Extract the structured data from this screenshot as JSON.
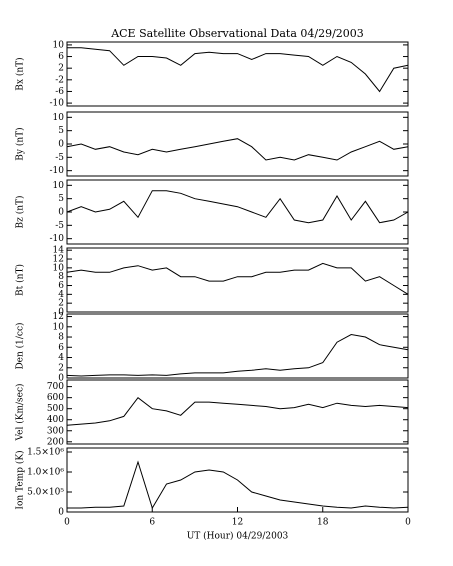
{
  "chart_data": [
    {
      "type": "line",
      "title": "ACE Satellite Observational Data  04/29/2003",
      "ylabel": "Bx (nT)",
      "x": [
        0,
        1,
        2,
        3,
        4,
        5,
        6,
        7,
        8,
        9,
        10,
        11,
        12,
        13,
        14,
        15,
        16,
        17,
        18,
        19,
        20,
        21,
        22,
        23,
        24
      ],
      "values": [
        9,
        9,
        8.5,
        8,
        3,
        6,
        6,
        5.5,
        3,
        7,
        7.5,
        7,
        7,
        5,
        7,
        7,
        6.5,
        6,
        3,
        6,
        4,
        0,
        -6,
        2,
        3
      ],
      "xlim": [
        0,
        24
      ],
      "ylim": [
        -11,
        11
      ],
      "yticks": [
        -10,
        -6,
        -2,
        2,
        6,
        10
      ],
      "color": "#000000"
    },
    {
      "type": "line",
      "ylabel": "By (nT)",
      "x": [
        0,
        1,
        2,
        3,
        4,
        5,
        6,
        7,
        8,
        9,
        10,
        11,
        12,
        13,
        14,
        15,
        16,
        17,
        18,
        19,
        20,
        21,
        22,
        23,
        24
      ],
      "values": [
        -1,
        0,
        -2,
        -1,
        -3,
        -4,
        -2,
        -3,
        -2,
        -1,
        0,
        1,
        2,
        -1,
        -6,
        -5,
        -6,
        -4,
        -5,
        -6,
        -3,
        -1,
        1,
        -2,
        -1
      ],
      "xlim": [
        0,
        24
      ],
      "ylim": [
        -12,
        12
      ],
      "yticks": [
        -10,
        -5,
        0,
        5,
        10
      ],
      "color": "#000000"
    },
    {
      "type": "line",
      "ylabel": "Bz (nT)",
      "x": [
        0,
        1,
        2,
        3,
        4,
        5,
        6,
        7,
        8,
        9,
        10,
        11,
        12,
        13,
        14,
        15,
        16,
        17,
        18,
        19,
        20,
        21,
        22,
        23,
        24
      ],
      "values": [
        0,
        2,
        0,
        1,
        4,
        -2,
        8,
        8,
        7,
        5,
        4,
        3,
        2,
        0,
        -2,
        5,
        -3,
        -4,
        -3,
        6,
        -3,
        4,
        -4,
        -3,
        0
      ],
      "xlim": [
        0,
        24
      ],
      "ylim": [
        -12,
        12
      ],
      "yticks": [
        -10,
        -5,
        0,
        5,
        10
      ],
      "color": "#000000"
    },
    {
      "type": "line",
      "ylabel": "Bt (nT)",
      "x": [
        0,
        1,
        2,
        3,
        4,
        5,
        6,
        7,
        8,
        9,
        10,
        11,
        12,
        13,
        14,
        15,
        16,
        17,
        18,
        19,
        20,
        21,
        22,
        23,
        24
      ],
      "values": [
        9,
        9.5,
        9,
        9,
        10,
        10.5,
        9.5,
        10,
        8,
        8,
        7,
        7,
        8,
        8,
        9,
        9,
        9.5,
        9.5,
        11,
        10,
        10,
        7,
        8,
        6,
        4
      ],
      "xlim": [
        0,
        24
      ],
      "ylim": [
        0,
        14.5
      ],
      "yticks": [
        0,
        2,
        4,
        6,
        8,
        10,
        12,
        14
      ],
      "color": "#000000"
    },
    {
      "type": "line",
      "ylabel": "Den (1/cc)",
      "x": [
        0,
        1,
        2,
        3,
        4,
        5,
        6,
        7,
        8,
        9,
        10,
        11,
        12,
        13,
        14,
        15,
        16,
        17,
        18,
        19,
        20,
        21,
        22,
        23,
        24
      ],
      "values": [
        0.5,
        0.4,
        0.5,
        0.6,
        0.6,
        0.5,
        0.6,
        0.5,
        0.8,
        1,
        1,
        1,
        1.3,
        1.5,
        1.8,
        1.5,
        1.8,
        2,
        3,
        7,
        8.5,
        8,
        6.5,
        6,
        5.5
      ],
      "xlim": [
        0,
        24
      ],
      "ylim": [
        0,
        12.5
      ],
      "yticks": [
        0,
        2,
        4,
        6,
        8,
        10,
        12
      ],
      "color": "#000000"
    },
    {
      "type": "line",
      "ylabel": "Vel (Km/sec)",
      "x": [
        0,
        1,
        2,
        3,
        4,
        5,
        6,
        7,
        8,
        9,
        10,
        11,
        12,
        13,
        14,
        15,
        16,
        17,
        18,
        19,
        20,
        21,
        22,
        23,
        24
      ],
      "values": [
        350,
        360,
        370,
        390,
        430,
        600,
        500,
        480,
        440,
        560,
        560,
        550,
        540,
        530,
        520,
        500,
        510,
        540,
        510,
        550,
        530,
        520,
        530,
        520,
        510
      ],
      "xlim": [
        0,
        24
      ],
      "ylim": [
        180,
        760
      ],
      "yticks": [
        200,
        300,
        400,
        500,
        600,
        700
      ],
      "color": "#000000"
    },
    {
      "type": "line",
      "ylabel": "Ion Temp (K)",
      "xlabel": "UT (Hour)  04/29/2003",
      "x": [
        0,
        1,
        2,
        3,
        4,
        5,
        6,
        7,
        8,
        9,
        10,
        11,
        12,
        13,
        14,
        15,
        16,
        17,
        18,
        19,
        20,
        21,
        22,
        23,
        24
      ],
      "values": [
        100000,
        100000,
        120000,
        120000,
        150000,
        1250000,
        100000,
        700000,
        800000,
        1000000,
        1050000,
        1000000,
        800000,
        500000,
        400000,
        300000,
        250000,
        200000,
        150000,
        120000,
        100000,
        150000,
        120000,
        100000,
        120000
      ],
      "xlim": [
        0,
        24
      ],
      "ylim": [
        0,
        1600000
      ],
      "yticks": [
        0,
        {
          "value": 500000,
          "label": "5.0×10⁵"
        },
        {
          "value": 1000000,
          "label": "1.0×10⁶"
        },
        {
          "value": 1500000,
          "label": "1.5×10⁶"
        }
      ],
      "xticks": [
        0,
        6,
        12,
        18,
        {
          "value": 24,
          "label": "0"
        }
      ],
      "color": "#000000"
    }
  ]
}
